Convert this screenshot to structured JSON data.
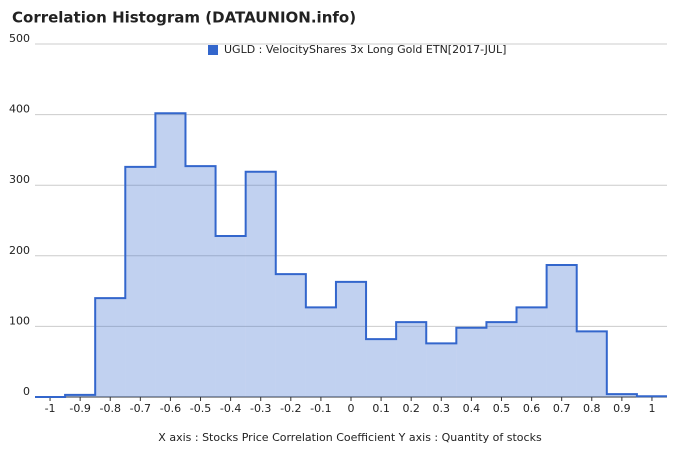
{
  "chart_data": {
    "type": "histogram",
    "title": "Correlation Histogram (DATAUNION.info)",
    "x_label": "X axis : Stocks Price Correlation Coefficient  Y axis : Quantity of stocks",
    "bins": [
      -1.05,
      -0.95,
      -0.85,
      -0.75,
      -0.65,
      -0.55,
      -0.45,
      -0.35,
      -0.25,
      -0.15,
      -0.05,
      0.05,
      0.15,
      0.25,
      0.35,
      0.45,
      0.55,
      0.65,
      0.75,
      0.85,
      0.95,
      1.05
    ],
    "series": [
      {
        "name": "UGLD : VelocityShares 3x Long Gold ETN[2017-JUL]",
        "color": "#3366cc",
        "values": [
          0,
          3,
          140,
          326,
          402,
          327,
          228,
          319,
          174,
          127,
          163,
          82,
          106,
          76,
          98,
          106,
          127,
          187,
          93,
          4,
          1
        ]
      }
    ],
    "xlim": [
      -1.05,
      1.05
    ],
    "xticks": [
      -1,
      -0.9,
      -0.8,
      -0.7,
      -0.6,
      -0.5,
      -0.4,
      -0.3,
      -0.2,
      -0.1,
      0,
      0.1,
      0.2,
      0.3,
      0.4,
      0.5,
      0.6,
      0.7,
      0.8,
      0.9,
      1
    ],
    "ylim": [
      0,
      500
    ],
    "yticks": [
      0,
      100,
      200,
      300,
      400,
      500
    ],
    "grid": true
  }
}
